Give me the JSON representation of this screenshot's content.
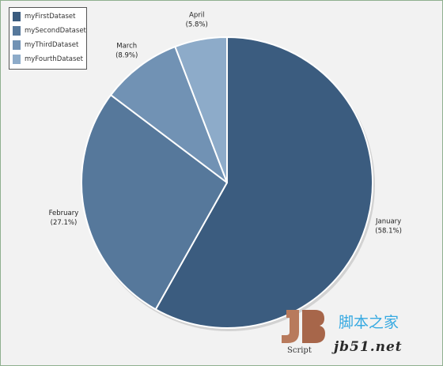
{
  "chart_data": {
    "type": "pie",
    "title": "",
    "start_angle_deg": 0,
    "direction": "clockwise",
    "legend_position": "top-left",
    "legend": [
      {
        "name": "myFirstDataset",
        "color": "#3b5c7f"
      },
      {
        "name": "mySecondDataset",
        "color": "#56789b"
      },
      {
        "name": "myThirdDataset",
        "color": "#7192b4"
      },
      {
        "name": "myFourthDataset",
        "color": "#8dabc9"
      }
    ],
    "slices": [
      {
        "label": "January",
        "percent_text": "(58.1%)",
        "value": 58.1,
        "color": "#3b5c7f"
      },
      {
        "label": "February",
        "percent_text": "(27.1%)",
        "value": 27.1,
        "color": "#56789b"
      },
      {
        "label": "March",
        "percent_text": "(8.9%)",
        "value": 8.9,
        "color": "#7192b4"
      },
      {
        "label": "April",
        "percent_text": "(5.8%)",
        "value": 5.8,
        "color": "#8dabc9"
      }
    ]
  },
  "watermark": {
    "logo_letters": "JB",
    "logo_word": "Script",
    "cn_text": "脚本之家",
    "url": "jb51.net"
  }
}
